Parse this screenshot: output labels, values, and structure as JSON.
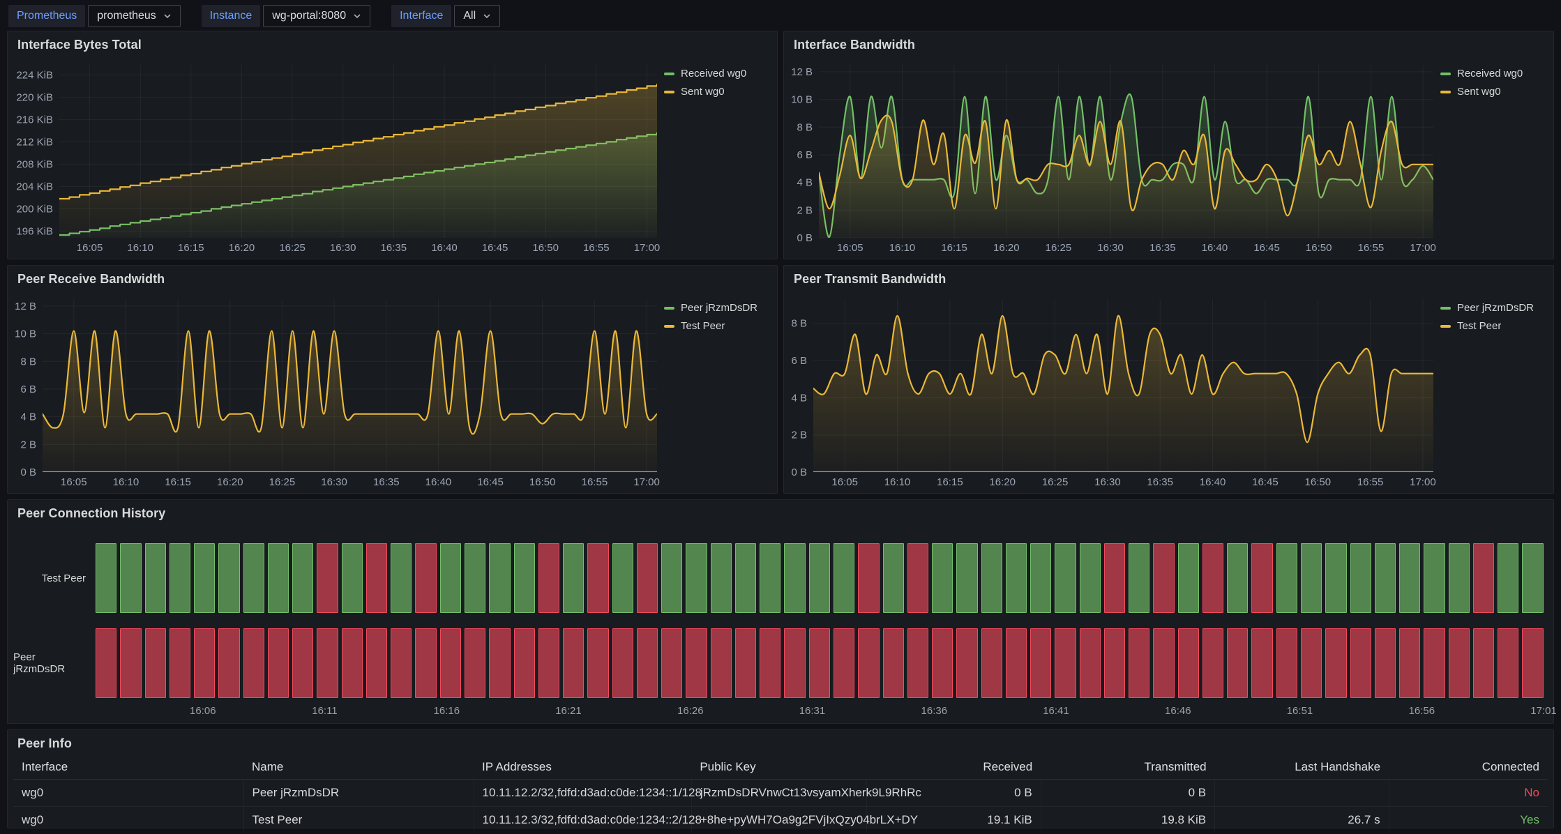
{
  "topbar": {
    "variables": [
      {
        "label": "Prometheus",
        "value": "prometheus"
      },
      {
        "label": "Instance",
        "value": "wg-portal:8080"
      },
      {
        "label": "Interface",
        "value": "All"
      }
    ]
  },
  "colors": {
    "green": "#73BF69",
    "yellow": "#EAB839",
    "red": "#F2495C",
    "label_blue": "#6e9fff",
    "tick_text": "#9da5b4",
    "grid": "rgba(204,204,220,0.07)"
  },
  "chart_data": [
    {
      "type": "line",
      "title": "Interface Bytes Total",
      "interp": "step",
      "time_start": "16:02",
      "time_end": "17:01",
      "y_domain": [
        194.8,
        225.8
      ],
      "ylabel": "",
      "y_ticks": [
        {
          "v": 196,
          "label": "196 KiB"
        },
        {
          "v": 200,
          "label": "200 KiB"
        },
        {
          "v": 204,
          "label": "204 KiB"
        },
        {
          "v": 208,
          "label": "208 KiB"
        },
        {
          "v": 212,
          "label": "212 KiB"
        },
        {
          "v": 216,
          "label": "216 KiB"
        },
        {
          "v": 220,
          "label": "220 KiB"
        },
        {
          "v": 224,
          "label": "224 KiB"
        }
      ],
      "x_ticks": [
        {
          "m": 3,
          "label": "16:05"
        },
        {
          "m": 8,
          "label": "16:10"
        },
        {
          "m": 13,
          "label": "16:15"
        },
        {
          "m": 18,
          "label": "16:20"
        },
        {
          "m": 23,
          "label": "16:25"
        },
        {
          "m": 28,
          "label": "16:30"
        },
        {
          "m": 33,
          "label": "16:35"
        },
        {
          "m": 38,
          "label": "16:40"
        },
        {
          "m": 43,
          "label": "16:45"
        },
        {
          "m": 48,
          "label": "16:50"
        },
        {
          "m": 53,
          "label": "16:55"
        },
        {
          "m": 58,
          "label": "17:00"
        }
      ],
      "series": [
        {
          "name": "Received wg0",
          "color": "#73BF69",
          "values": [
            195.3,
            195.6,
            195.9,
            196.2,
            196.5,
            196.9,
            197.2,
            197.5,
            197.8,
            198.1,
            198.4,
            198.7,
            199.0,
            199.3,
            199.6,
            200.0,
            200.3,
            200.6,
            200.9,
            201.2,
            201.5,
            201.8,
            202.1,
            202.4,
            202.7,
            203.1,
            203.4,
            203.7,
            204.0,
            204.3,
            204.6,
            204.9,
            205.2,
            205.5,
            205.8,
            206.2,
            206.5,
            206.8,
            207.1,
            207.4,
            207.7,
            208.0,
            208.3,
            208.6,
            208.9,
            209.3,
            209.6,
            209.9,
            210.2,
            210.5,
            210.8,
            211.1,
            211.4,
            211.7,
            212.0,
            212.4,
            212.7,
            213.0,
            213.3,
            213.6
          ]
        },
        {
          "name": "Sent wg0",
          "color": "#EAB839",
          "values": [
            201.8,
            202.1,
            202.5,
            202.8,
            203.2,
            203.5,
            203.9,
            204.2,
            204.6,
            204.9,
            205.3,
            205.6,
            206.0,
            206.3,
            206.7,
            207.0,
            207.4,
            207.7,
            208.1,
            208.4,
            208.8,
            209.1,
            209.4,
            209.8,
            210.1,
            210.5,
            210.8,
            211.2,
            211.5,
            211.9,
            212.2,
            212.6,
            212.9,
            213.3,
            213.6,
            214.0,
            214.3,
            214.7,
            215.0,
            215.4,
            215.7,
            216.1,
            216.4,
            216.8,
            217.1,
            217.5,
            217.8,
            218.2,
            218.5,
            218.9,
            219.2,
            219.5,
            219.9,
            220.2,
            220.6,
            220.9,
            221.3,
            221.6,
            222.0,
            222.3
          ]
        }
      ]
    },
    {
      "type": "line",
      "title": "Interface Bandwidth",
      "interp": "smooth",
      "time_start": "16:02",
      "time_end": "17:01",
      "y_domain": [
        0,
        12.5
      ],
      "y_ticks": [
        {
          "v": 0,
          "label": "0 B"
        },
        {
          "v": 2,
          "label": "2 B"
        },
        {
          "v": 4,
          "label": "4 B"
        },
        {
          "v": 6,
          "label": "6 B"
        },
        {
          "v": 8,
          "label": "8 B"
        },
        {
          "v": 10,
          "label": "10 B"
        },
        {
          "v": 12,
          "label": "12 B"
        }
      ],
      "x_ticks": [
        {
          "m": 3,
          "label": "16:05"
        },
        {
          "m": 8,
          "label": "16:10"
        },
        {
          "m": 13,
          "label": "16:15"
        },
        {
          "m": 18,
          "label": "16:20"
        },
        {
          "m": 23,
          "label": "16:25"
        },
        {
          "m": 28,
          "label": "16:30"
        },
        {
          "m": 33,
          "label": "16:35"
        },
        {
          "m": 38,
          "label": "16:40"
        },
        {
          "m": 43,
          "label": "16:45"
        },
        {
          "m": 48,
          "label": "16:50"
        },
        {
          "m": 53,
          "label": "16:55"
        },
        {
          "m": 58,
          "label": "17:00"
        }
      ],
      "series": [
        {
          "name": "Received wg0",
          "color": "#73BF69",
          "values": [
            4.7,
            0.05,
            6,
            10.2,
            4.3,
            10.2,
            6.5,
            10.2,
            4.2,
            4.2,
            4.2,
            4.2,
            4.2,
            3.2,
            10.2,
            3.2,
            10.2,
            4.2,
            7.4,
            4.2,
            4.2,
            3.2,
            4.2,
            10.2,
            4.2,
            10.2,
            5.2,
            10.2,
            4.2,
            8.4,
            10.2,
            4.2,
            4.2,
            4.2,
            5.3,
            5.3,
            4.2,
            10.2,
            4.2,
            8.4,
            4.2,
            4.2,
            3.2,
            4.2,
            4.2,
            4.2,
            4.2,
            10.2,
            3.2,
            4.2,
            4.2,
            4.2,
            4.2,
            10.2,
            4.2,
            10.2,
            4.2,
            4.2,
            5.2,
            4.2
          ]
        },
        {
          "name": "Sent wg0",
          "color": "#EAB839",
          "values": [
            4.7,
            2.1,
            4.5,
            7.4,
            4.3,
            6.3,
            8.5,
            8.4,
            4.2,
            4.2,
            8.5,
            5.3,
            7.5,
            2.1,
            7.4,
            5.4,
            8.4,
            2.1,
            8.5,
            4.2,
            4.3,
            4.2,
            5.3,
            5.3,
            5.3,
            7.4,
            5.3,
            8.4,
            5.3,
            8.4,
            2.1,
            4.2,
            5.3,
            5.3,
            4.2,
            6.3,
            5.3,
            7.4,
            2.1,
            6.3,
            5.3,
            4.2,
            4.2,
            5.3,
            4.2,
            1.6,
            4.2,
            7.4,
            5.3,
            6.3,
            5.3,
            8.4,
            5.3,
            2.2,
            6.3,
            8.4,
            5.3,
            5.3,
            5.3,
            5.3
          ]
        }
      ]
    },
    {
      "type": "line",
      "title": "Peer Receive Bandwidth",
      "interp": "smooth",
      "time_start": "16:02",
      "time_end": "17:01",
      "y_domain": [
        0,
        12.5
      ],
      "y_ticks": [
        {
          "v": 0,
          "label": "0 B"
        },
        {
          "v": 2,
          "label": "2 B"
        },
        {
          "v": 4,
          "label": "4 B"
        },
        {
          "v": 6,
          "label": "6 B"
        },
        {
          "v": 8,
          "label": "8 B"
        },
        {
          "v": 10,
          "label": "10 B"
        },
        {
          "v": 12,
          "label": "12 B"
        }
      ],
      "x_ticks": [
        {
          "m": 3,
          "label": "16:05"
        },
        {
          "m": 8,
          "label": "16:10"
        },
        {
          "m": 13,
          "label": "16:15"
        },
        {
          "m": 18,
          "label": "16:20"
        },
        {
          "m": 23,
          "label": "16:25"
        },
        {
          "m": 28,
          "label": "16:30"
        },
        {
          "m": 33,
          "label": "16:35"
        },
        {
          "m": 38,
          "label": "16:40"
        },
        {
          "m": 43,
          "label": "16:45"
        },
        {
          "m": 48,
          "label": "16:50"
        },
        {
          "m": 53,
          "label": "16:55"
        },
        {
          "m": 58,
          "label": "17:00"
        }
      ],
      "series": [
        {
          "name": "Peer jRzmDsDR",
          "color": "#73BF69",
          "values": [
            0,
            0,
            0,
            0,
            0,
            0,
            0,
            0,
            0,
            0,
            0,
            0,
            0,
            0,
            0,
            0,
            0,
            0,
            0,
            0,
            0,
            0,
            0,
            0,
            0,
            0,
            0,
            0,
            0,
            0,
            0,
            0,
            0,
            0,
            0,
            0,
            0,
            0,
            0,
            0,
            0,
            0,
            0,
            0,
            0,
            0,
            0,
            0,
            0,
            0,
            0,
            0,
            0,
            0,
            0,
            0,
            0,
            0,
            0,
            0
          ]
        },
        {
          "name": "Test Peer",
          "color": "#EAB839",
          "values": [
            4.2,
            3.2,
            4.2,
            10.2,
            4.3,
            10.2,
            3.2,
            10.2,
            4.2,
            4.2,
            4.2,
            4.2,
            4.2,
            3.2,
            10.2,
            3.2,
            10.2,
            4.2,
            4.2,
            4.2,
            4.2,
            3.2,
            10.2,
            3.2,
            10.2,
            3.2,
            10.2,
            4.2,
            10.2,
            4.2,
            4.2,
            4.2,
            4.2,
            4.2,
            4.2,
            4.2,
            4.2,
            4.2,
            10.2,
            4.2,
            10.2,
            3.2,
            4.2,
            10.2,
            4.2,
            4.2,
            4.2,
            4.2,
            3.5,
            4.2,
            4.2,
            4.2,
            4.2,
            10.2,
            4.2,
            10.2,
            3.2,
            10.2,
            4.2,
            4.2
          ]
        }
      ]
    },
    {
      "type": "line",
      "title": "Peer Transmit Bandwidth",
      "interp": "smooth",
      "time_start": "16:02",
      "time_end": "17:01",
      "y_domain": [
        0,
        9.3
      ],
      "y_ticks": [
        {
          "v": 0,
          "label": "0 B"
        },
        {
          "v": 2,
          "label": "2 B"
        },
        {
          "v": 4,
          "label": "4 B"
        },
        {
          "v": 6,
          "label": "6 B"
        },
        {
          "v": 8,
          "label": "8 B"
        }
      ],
      "x_ticks": [
        {
          "m": 3,
          "label": "16:05"
        },
        {
          "m": 8,
          "label": "16:10"
        },
        {
          "m": 13,
          "label": "16:15"
        },
        {
          "m": 18,
          "label": "16:20"
        },
        {
          "m": 23,
          "label": "16:25"
        },
        {
          "m": 28,
          "label": "16:30"
        },
        {
          "m": 33,
          "label": "16:35"
        },
        {
          "m": 38,
          "label": "16:40"
        },
        {
          "m": 43,
          "label": "16:45"
        },
        {
          "m": 48,
          "label": "16:50"
        },
        {
          "m": 53,
          "label": "16:55"
        },
        {
          "m": 58,
          "label": "17:00"
        }
      ],
      "series": [
        {
          "name": "Peer jRzmDsDR",
          "color": "#73BF69",
          "values": [
            0,
            0,
            0,
            0,
            0,
            0,
            0,
            0,
            0,
            0,
            0,
            0,
            0,
            0,
            0,
            0,
            0,
            0,
            0,
            0,
            0,
            0,
            0,
            0,
            0,
            0,
            0,
            0,
            0,
            0,
            0,
            0,
            0,
            0,
            0,
            0,
            0,
            0,
            0,
            0,
            0,
            0,
            0,
            0,
            0,
            0,
            0,
            0,
            0,
            0,
            0,
            0,
            0,
            0,
            0,
            0,
            0,
            0,
            0,
            0
          ]
        },
        {
          "name": "Test Peer",
          "color": "#EAB839",
          "values": [
            4.5,
            4.2,
            5.3,
            5.3,
            7.4,
            4.2,
            6.3,
            5.3,
            8.4,
            5.3,
            4.2,
            5.3,
            5.3,
            4.2,
            5.3,
            4.2,
            7.4,
            5.3,
            8.4,
            5.3,
            5.3,
            4.2,
            6.3,
            6.3,
            5.3,
            7.4,
            5.3,
            7.4,
            4.2,
            8.4,
            5.3,
            4.2,
            7.4,
            7.4,
            5.3,
            6.3,
            4.2,
            6.3,
            4.2,
            5.3,
            5.9,
            5.3,
            5.3,
            5.3,
            5.3,
            5.3,
            4.2,
            1.6,
            4.2,
            5.3,
            5.9,
            5.3,
            6.3,
            6.3,
            2.2,
            5.3,
            5.3,
            5.3,
            5.3,
            5.3
          ]
        }
      ]
    },
    {
      "type": "state_timeline",
      "title": "Peer Connection History",
      "total_minutes": 59,
      "states": {
        "G": {
          "name": "connected",
          "fill": "rgba(115,191,105,0.65)",
          "border": "#73BF69"
        },
        "R": {
          "name": "disconnected",
          "fill": "rgba(242,73,92,0.62)",
          "border": "#F2495C"
        }
      },
      "rows": [
        {
          "label": "Test Peer",
          "pattern": "GGGGGGGGGRGRGRGGGGRGRGRGGGGGGGGRGRGGGGGGGRGRGRGRGGGGGGGGRGG"
        },
        {
          "label": "Peer jRzmDsDR",
          "pattern": "RRRRRRRRRRRRRRRRRRRRRRRRRRRRRRRRRRRRRRRRRRRRRRRRRRRRRRRRRRR"
        }
      ],
      "x_ticks": [
        {
          "m": 4,
          "label": "16:06"
        },
        {
          "m": 9,
          "label": "16:11"
        },
        {
          "m": 14,
          "label": "16:16"
        },
        {
          "m": 19,
          "label": "16:21"
        },
        {
          "m": 24,
          "label": "16:26"
        },
        {
          "m": 29,
          "label": "16:31"
        },
        {
          "m": 34,
          "label": "16:36"
        },
        {
          "m": 39,
          "label": "16:41"
        },
        {
          "m": 44,
          "label": "16:46"
        },
        {
          "m": 49,
          "label": "16:51"
        },
        {
          "m": 54,
          "label": "16:56"
        },
        {
          "m": 59,
          "label": "17:01"
        }
      ]
    }
  ],
  "table": {
    "title": "Peer Info",
    "columns": [
      {
        "label": "Interface",
        "align": "left",
        "width": "16.8%"
      },
      {
        "label": "Name",
        "align": "left",
        "width": "16.8%"
      },
      {
        "label": "IP Addresses",
        "align": "left",
        "width": "15.9%"
      },
      {
        "label": "Public Key",
        "align": "left",
        "width": "12.8%"
      },
      {
        "label": "Received",
        "align": "right",
        "width": "12.7%"
      },
      {
        "label": "Transmitted",
        "align": "right",
        "width": "12.7%"
      },
      {
        "label": "Last Handshake",
        "align": "right",
        "width": "12.7%"
      },
      {
        "label": "Connected",
        "align": "right",
        "width": "11.6%"
      }
    ],
    "rows": [
      [
        "wg0",
        "Peer jRzmDsDR",
        "10.11.12.2/32,fdfd:d3ad:c0de:1234::1/128",
        "jRzmDsDRVnwCt13vsyamXherk9L9RhRc",
        "0 B",
        "0 B",
        "",
        "No"
      ],
      [
        "wg0",
        "Test Peer",
        "10.11.12.3/32,fdfd:d3ad:c0de:1234::2/128",
        "+8he+pyWH7Oa9g2FVjIxQzy04brLX+DY",
        "19.1 KiB",
        "19.8 KiB",
        "26.7 s",
        "Yes"
      ]
    ],
    "value_colors": {
      "No": "#F2495C",
      "Yes": "#73BF69"
    }
  }
}
